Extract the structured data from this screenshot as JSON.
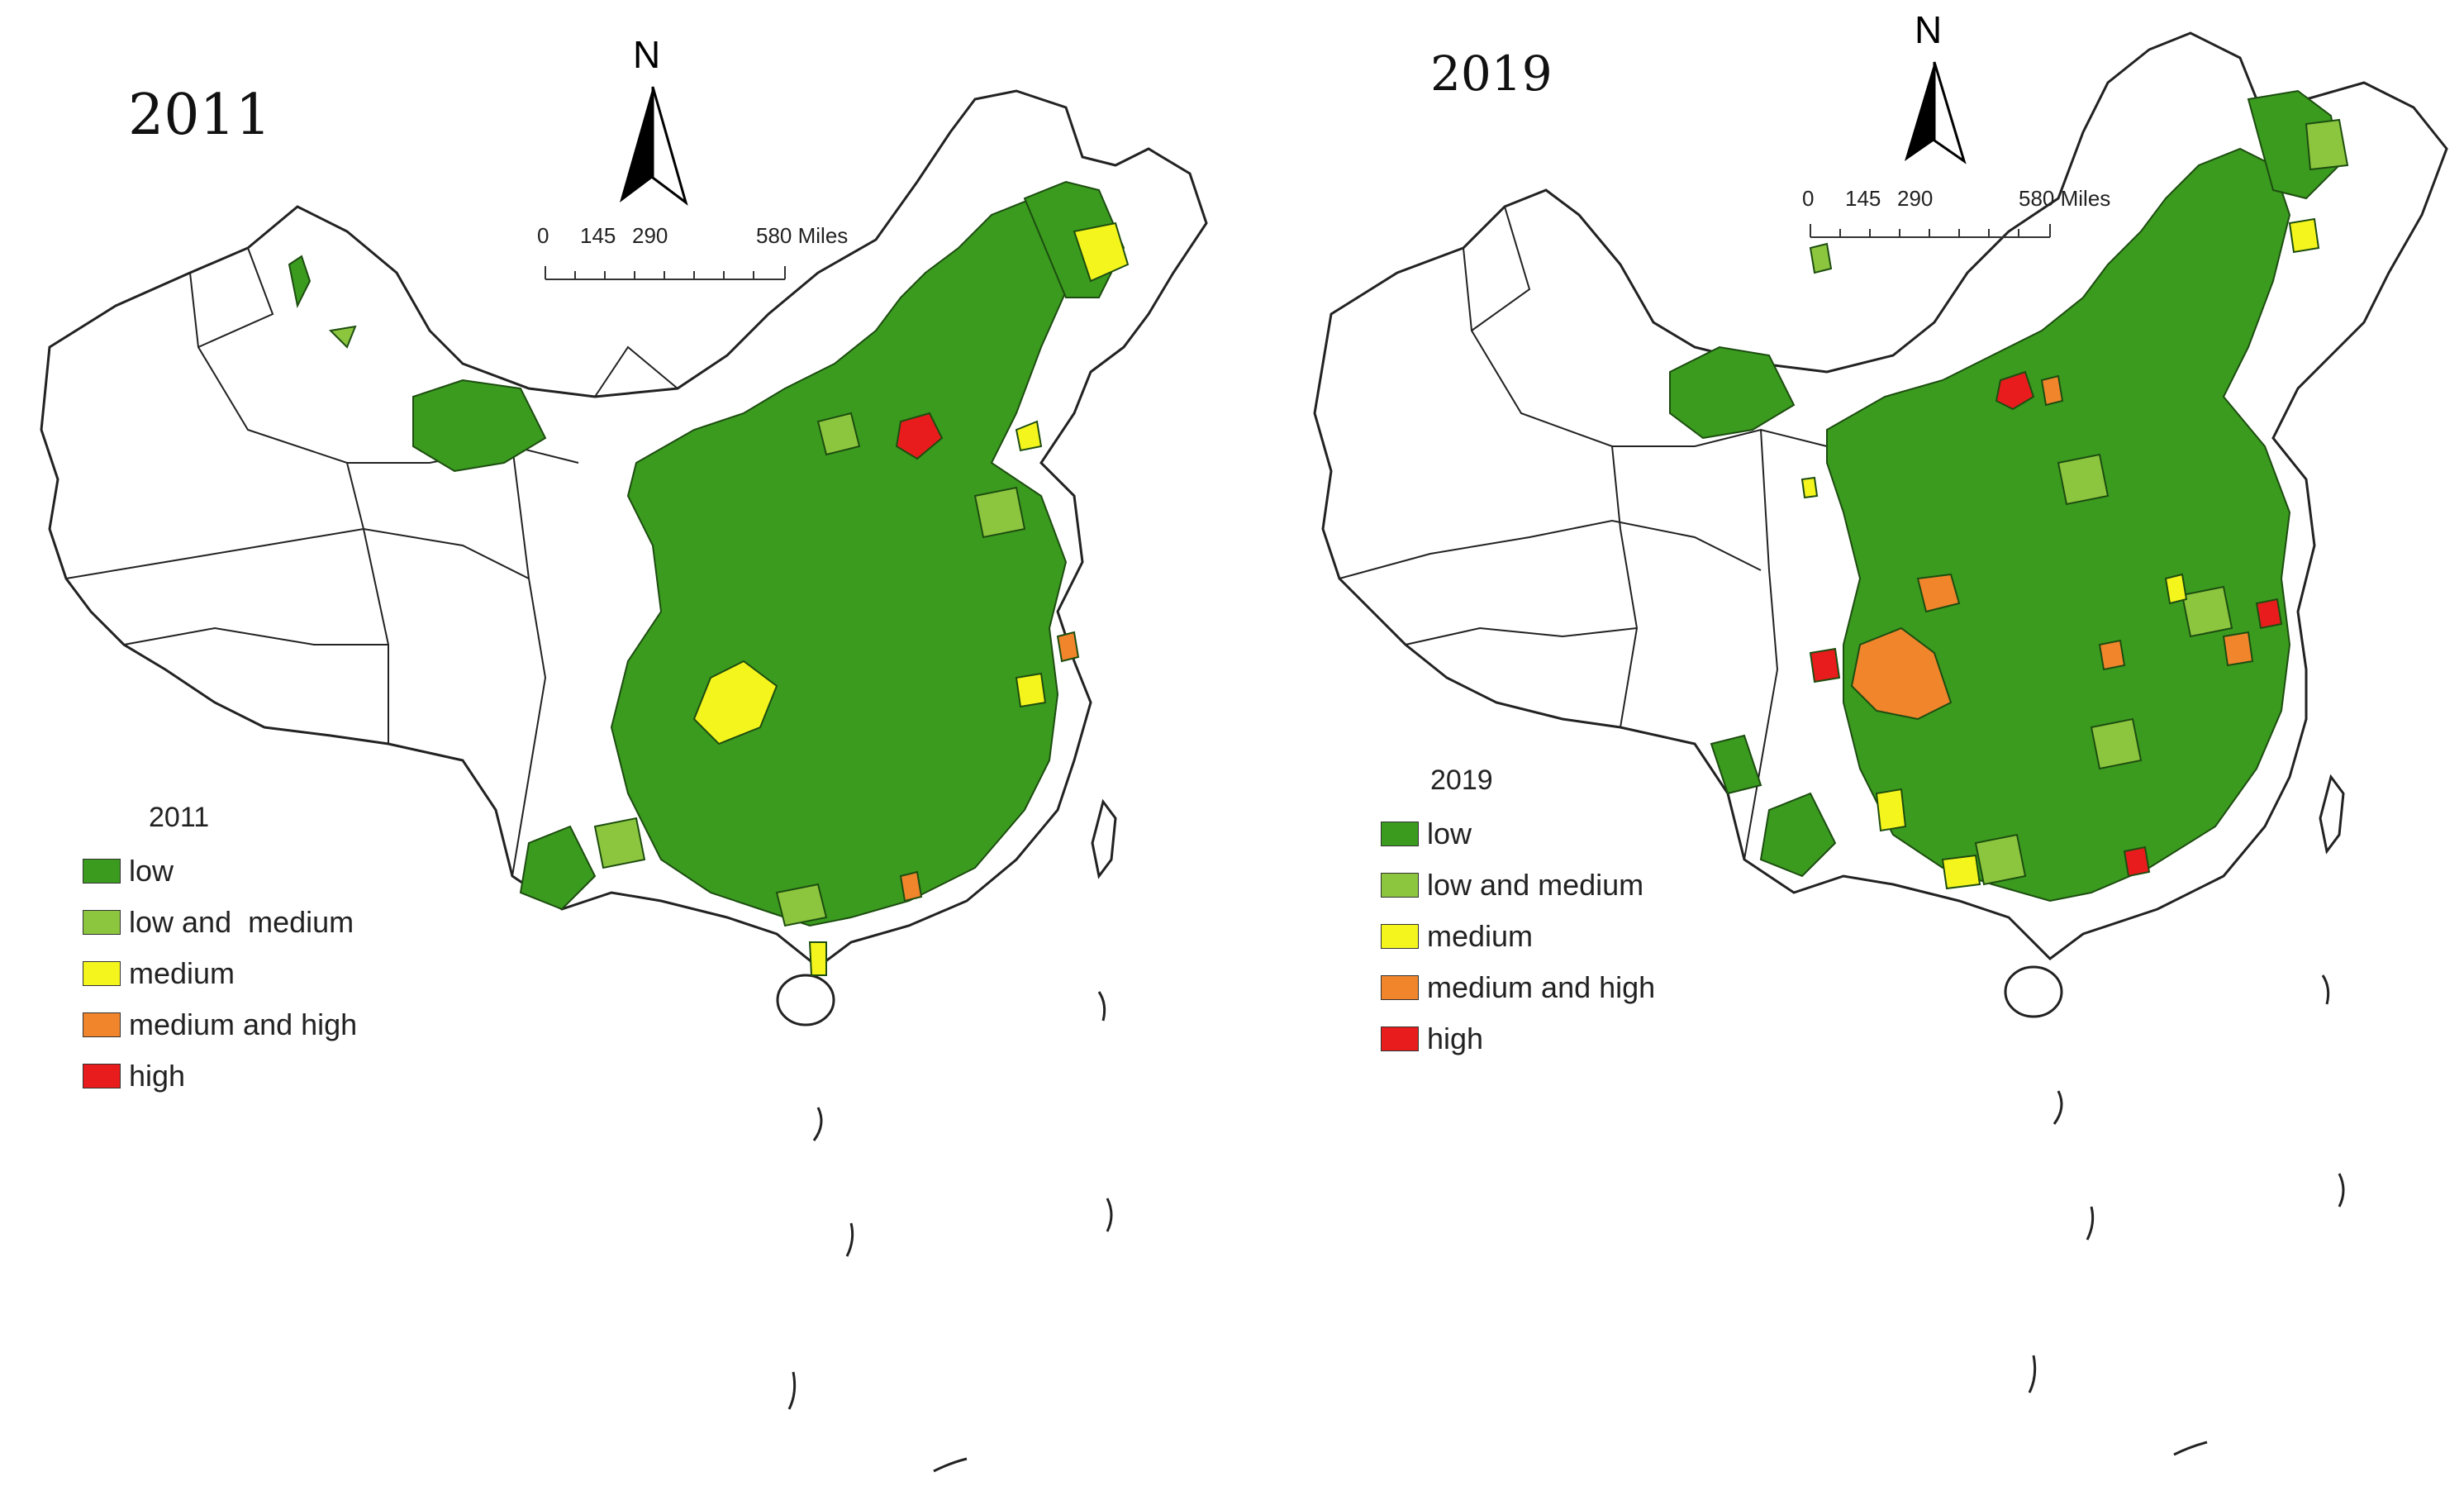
{
  "panels": [
    {
      "title": "2011",
      "north_label": "N",
      "scale": {
        "ticks": [
          "0",
          "145",
          "290",
          "580 Miles"
        ]
      },
      "legend": {
        "title": "2011",
        "items": [
          {
            "label": "low",
            "color": "#3a9b1f"
          },
          {
            "label": "low and  medium",
            "color": "#8cc63e"
          },
          {
            "label": "medium",
            "color": "#f5f51e"
          },
          {
            "label": "medium and high",
            "color": "#f0852c"
          },
          {
            "label": "high",
            "color": "#e81c1c"
          }
        ]
      }
    },
    {
      "title": "2019",
      "north_label": "N",
      "scale": {
        "ticks": [
          "0",
          "145",
          "290",
          "580 Miles"
        ]
      },
      "legend": {
        "title": "2019",
        "items": [
          {
            "label": "low",
            "color": "#3a9b1f"
          },
          {
            "label": "low and medium",
            "color": "#8cc63e"
          },
          {
            "label": "medium",
            "color": "#f5f51e"
          },
          {
            "label": "medium and high",
            "color": "#f0852c"
          },
          {
            "label": "high",
            "color": "#e81c1c"
          }
        ]
      }
    }
  ]
}
